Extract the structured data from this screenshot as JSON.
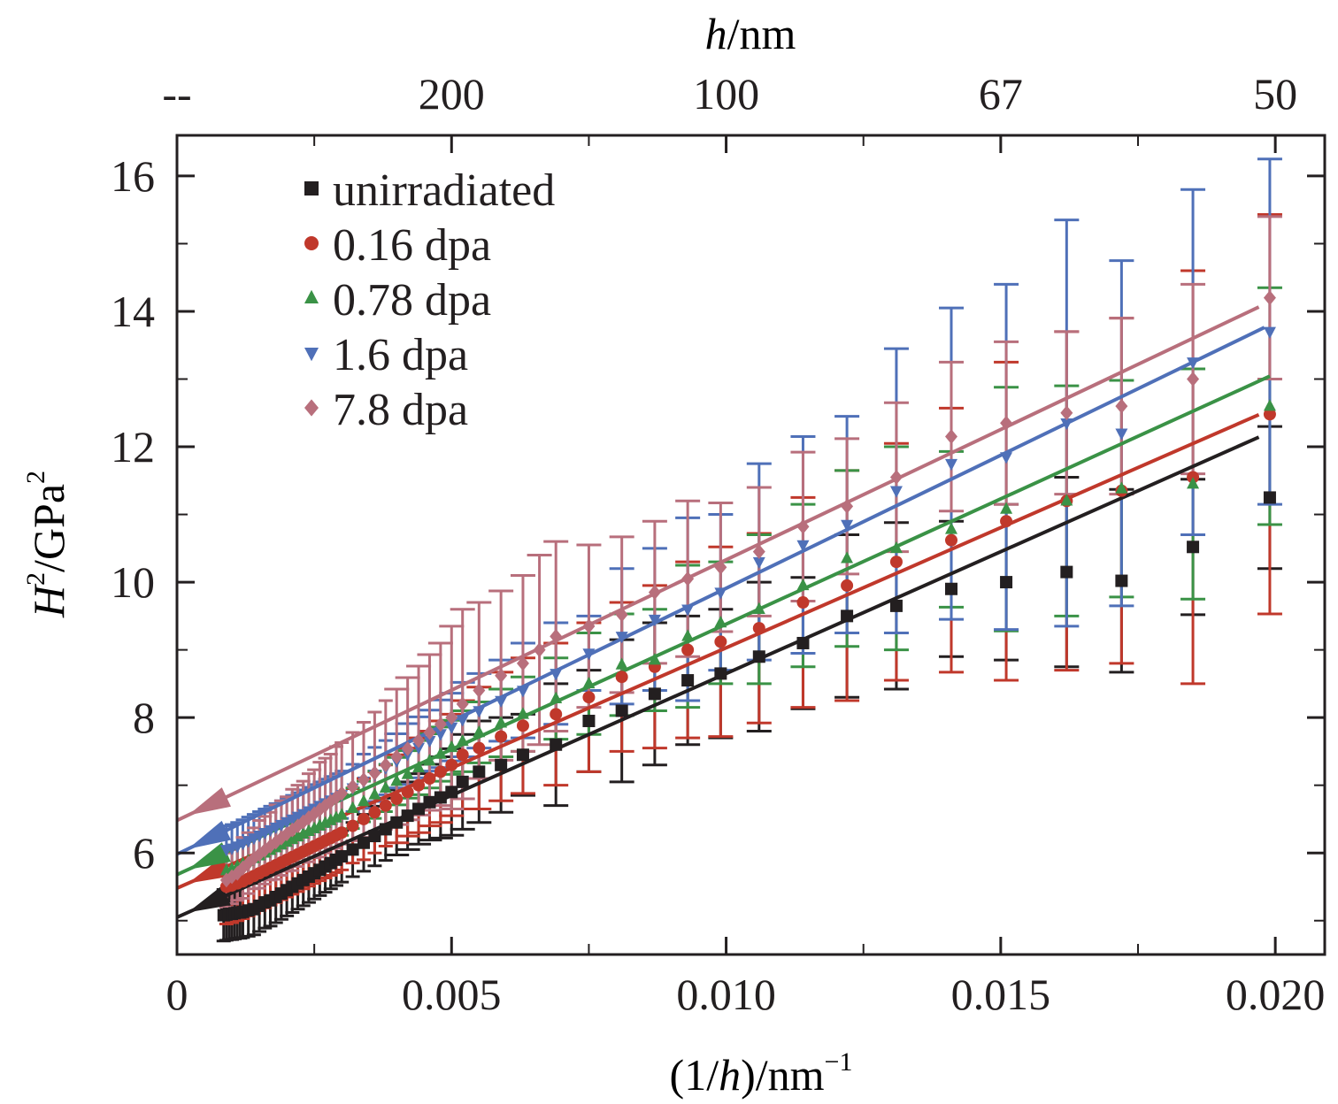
{
  "chart_data": {
    "type": "scatter",
    "xlabel_prefix": "(1/",
    "xlabel_var": "h",
    "xlabel_suffix": ")/nm",
    "xlabel_sup": "−1",
    "ylabel_var": "H",
    "ylabel_sup1": "2",
    "ylabel_mid": "/GPa",
    "ylabel_sup2": "2",
    "top_axis_var": "h",
    "top_axis_unit": "/nm",
    "top_ticks": [
      {
        "x": 0.0,
        "label": "--"
      },
      {
        "x": 0.005,
        "label": "200"
      },
      {
        "x": 0.01,
        "label": "100"
      },
      {
        "x": 0.015,
        "label": "67"
      },
      {
        "x": 0.02,
        "label": "50"
      }
    ],
    "xlim": [
      0,
      0.0209
    ],
    "ylim": [
      4.5,
      16.6
    ],
    "x_ticks": [
      {
        "v": 0,
        "label": "0"
      },
      {
        "v": 0.005,
        "label": "0.005"
      },
      {
        "v": 0.01,
        "label": "0.010"
      },
      {
        "v": 0.015,
        "label": "0.015"
      },
      {
        "v": 0.02,
        "label": "0.020"
      }
    ],
    "y_ticks": [
      {
        "v": 6,
        "label": "6"
      },
      {
        "v": 8,
        "label": "8"
      },
      {
        "v": 10,
        "label": "10"
      },
      {
        "v": 12,
        "label": "12"
      },
      {
        "v": 14,
        "label": "14"
      },
      {
        "v": 16,
        "label": "16"
      }
    ],
    "legend_position": "top-left",
    "series": [
      {
        "name": "unirradiated",
        "color": "#231f20",
        "marker": "square",
        "fit": {
          "intercept": 5.05,
          "slope": 360,
          "x_end": 0.0197
        },
        "x": [
          0.00085,
          0.0009,
          0.00095,
          0.001,
          0.00105,
          0.0011,
          0.00115,
          0.0012,
          0.0013,
          0.0014,
          0.0015,
          0.0016,
          0.0017,
          0.0018,
          0.0019,
          0.002,
          0.0021,
          0.0022,
          0.0023,
          0.0024,
          0.0025,
          0.0026,
          0.0027,
          0.0028,
          0.0029,
          0.003,
          0.0032,
          0.0034,
          0.0036,
          0.0038,
          0.004,
          0.0042,
          0.0044,
          0.0046,
          0.0048,
          0.005,
          0.0052,
          0.0055,
          0.0059,
          0.0063,
          0.0069,
          0.0075,
          0.0081,
          0.0087,
          0.0093,
          0.0099,
          0.0106,
          0.0114,
          0.0122,
          0.0131,
          0.0141,
          0.0151,
          0.0162,
          0.0172,
          0.0185,
          0.0199
        ],
        "y": [
          5.08,
          5.09,
          5.1,
          5.1,
          5.11,
          5.12,
          5.12,
          5.13,
          5.15,
          5.17,
          5.22,
          5.27,
          5.3,
          5.35,
          5.4,
          5.45,
          5.5,
          5.55,
          5.6,
          5.65,
          5.7,
          5.75,
          5.8,
          5.85,
          5.9,
          5.95,
          6.05,
          6.15,
          6.25,
          6.35,
          6.45,
          6.55,
          6.65,
          6.75,
          6.82,
          6.9,
          7.05,
          7.2,
          7.3,
          7.45,
          7.6,
          7.95,
          8.1,
          8.35,
          8.55,
          8.65,
          8.9,
          9.1,
          9.5,
          9.65,
          9.9,
          10.0,
          10.15,
          10.02,
          10.52,
          11.25
        ],
        "err": [
          0.38,
          0.38,
          0.38,
          0.38,
          0.38,
          0.38,
          0.38,
          0.38,
          0.38,
          0.38,
          0.38,
          0.38,
          0.38,
          0.38,
          0.38,
          0.38,
          0.38,
          0.38,
          0.38,
          0.38,
          0.38,
          0.38,
          0.38,
          0.38,
          0.38,
          0.38,
          0.4,
          0.42,
          0.44,
          0.46,
          0.48,
          0.5,
          0.52,
          0.56,
          0.6,
          0.64,
          0.7,
          0.75,
          0.7,
          0.6,
          0.9,
          0.75,
          1.05,
          1.05,
          0.95,
          0.95,
          1.1,
          0.97,
          1.2,
          1.23,
          1.0,
          1.15,
          1.4,
          1.35,
          1.0,
          1.05
        ]
      },
      {
        "name": "0.16 dpa",
        "color": "#c0382b",
        "marker": "circle",
        "fit": {
          "intercept": 5.48,
          "slope": 355,
          "x_end": 0.0197
        },
        "x": [
          0.0009,
          0.001,
          0.0011,
          0.0012,
          0.0013,
          0.0014,
          0.0015,
          0.0016,
          0.0017,
          0.0018,
          0.0019,
          0.002,
          0.0021,
          0.0022,
          0.0023,
          0.0024,
          0.0025,
          0.0026,
          0.0027,
          0.0028,
          0.0029,
          0.003,
          0.0032,
          0.0034,
          0.0036,
          0.0038,
          0.004,
          0.0042,
          0.0044,
          0.0046,
          0.0048,
          0.005,
          0.0052,
          0.0055,
          0.0059,
          0.0063,
          0.0069,
          0.0075,
          0.0081,
          0.0087,
          0.0093,
          0.0099,
          0.0106,
          0.0114,
          0.0122,
          0.0131,
          0.0141,
          0.0151,
          0.0162,
          0.0172,
          0.0185,
          0.0199
        ],
        "y": [
          5.5,
          5.52,
          5.55,
          5.58,
          5.62,
          5.66,
          5.7,
          5.74,
          5.78,
          5.82,
          5.86,
          5.9,
          5.94,
          5.98,
          6.02,
          6.06,
          6.1,
          6.14,
          6.18,
          6.22,
          6.26,
          6.3,
          6.4,
          6.5,
          6.6,
          6.7,
          6.8,
          6.9,
          7.0,
          7.1,
          7.2,
          7.3,
          7.45,
          7.55,
          7.72,
          7.88,
          8.05,
          8.3,
          8.6,
          8.75,
          9.0,
          9.12,
          9.32,
          9.7,
          9.95,
          10.3,
          10.62,
          10.9,
          11.2,
          11.35,
          11.55,
          12.48
        ],
        "err": [
          0.55,
          0.55,
          0.55,
          0.55,
          0.55,
          0.55,
          0.55,
          0.55,
          0.55,
          0.55,
          0.55,
          0.55,
          0.55,
          0.55,
          0.55,
          0.55,
          0.55,
          0.55,
          0.55,
          0.55,
          0.55,
          0.55,
          0.55,
          0.6,
          0.6,
          0.6,
          0.65,
          0.65,
          0.7,
          0.7,
          0.75,
          0.75,
          0.8,
          0.9,
          0.95,
          1.0,
          1.05,
          1.1,
          1.1,
          1.2,
          1.3,
          1.4,
          1.4,
          1.55,
          1.7,
          1.75,
          1.95,
          2.35,
          2.5,
          2.55,
          3.05,
          2.95
        ]
      },
      {
        "name": "0.78 dpa",
        "color": "#3a9246",
        "marker": "triangle-up",
        "fit": {
          "intercept": 5.68,
          "slope": 370,
          "x_end": 0.0199
        },
        "x": [
          0.0009,
          0.001,
          0.0011,
          0.0012,
          0.0013,
          0.0014,
          0.0015,
          0.0016,
          0.0017,
          0.0018,
          0.0019,
          0.002,
          0.0021,
          0.0022,
          0.0023,
          0.0024,
          0.0025,
          0.0026,
          0.0027,
          0.0028,
          0.0029,
          0.003,
          0.0032,
          0.0034,
          0.0036,
          0.0038,
          0.004,
          0.0042,
          0.0044,
          0.0046,
          0.0048,
          0.005,
          0.0052,
          0.0055,
          0.0059,
          0.0063,
          0.0069,
          0.0075,
          0.0081,
          0.0087,
          0.0093,
          0.0099,
          0.0106,
          0.0114,
          0.0122,
          0.0131,
          0.0141,
          0.0151,
          0.0162,
          0.0172,
          0.0185,
          0.0199
        ],
        "y": [
          5.74,
          5.76,
          5.8,
          5.84,
          5.88,
          5.92,
          5.96,
          6.0,
          6.04,
          6.08,
          6.12,
          6.16,
          6.2,
          6.24,
          6.28,
          6.32,
          6.36,
          6.4,
          6.44,
          6.48,
          6.52,
          6.56,
          6.66,
          6.76,
          6.86,
          6.96,
          7.06,
          7.16,
          7.26,
          7.36,
          7.46,
          7.56,
          7.65,
          7.78,
          7.92,
          8.05,
          8.28,
          8.5,
          8.78,
          8.85,
          9.2,
          9.4,
          9.6,
          9.95,
          10.35,
          10.5,
          10.78,
          11.08,
          11.2,
          11.38,
          11.45,
          12.6
        ],
        "err": [
          0.3,
          0.3,
          0.3,
          0.3,
          0.3,
          0.3,
          0.3,
          0.3,
          0.3,
          0.3,
          0.3,
          0.3,
          0.3,
          0.3,
          0.3,
          0.3,
          0.3,
          0.3,
          0.3,
          0.3,
          0.3,
          0.3,
          0.3,
          0.3,
          0.35,
          0.35,
          0.35,
          0.35,
          0.4,
          0.4,
          0.4,
          0.4,
          0.45,
          0.45,
          0.5,
          0.55,
          0.6,
          0.75,
          0.75,
          0.75,
          1.05,
          0.9,
          1.1,
          1.2,
          1.3,
          1.5,
          1.15,
          1.8,
          1.7,
          1.6,
          1.7,
          1.75
        ]
      },
      {
        "name": "1.6 dpa",
        "color": "#4f70b8",
        "marker": "triangle-down",
        "fit": {
          "intercept": 5.98,
          "slope": 393,
          "x_end": 0.0198
        },
        "x": [
          0.0009,
          0.001,
          0.0011,
          0.0012,
          0.0013,
          0.0014,
          0.0015,
          0.0016,
          0.0017,
          0.0018,
          0.0019,
          0.002,
          0.0021,
          0.0022,
          0.0023,
          0.0024,
          0.0025,
          0.0026,
          0.0027,
          0.0028,
          0.0029,
          0.003,
          0.0032,
          0.0034,
          0.0036,
          0.0038,
          0.004,
          0.0042,
          0.0044,
          0.0046,
          0.0048,
          0.005,
          0.0052,
          0.0055,
          0.0059,
          0.0063,
          0.0069,
          0.0075,
          0.0081,
          0.0087,
          0.0093,
          0.0099,
          0.0106,
          0.0114,
          0.0122,
          0.0131,
          0.0141,
          0.0151,
          0.0162,
          0.0172,
          0.0185,
          0.0199
        ],
        "y": [
          6.05,
          6.07,
          6.1,
          6.14,
          6.18,
          6.22,
          6.26,
          6.3,
          6.34,
          6.38,
          6.42,
          6.46,
          6.5,
          6.54,
          6.58,
          6.62,
          6.66,
          6.7,
          6.74,
          6.78,
          6.82,
          6.86,
          6.96,
          7.06,
          7.16,
          7.26,
          7.36,
          7.46,
          7.56,
          7.66,
          7.76,
          7.86,
          7.97,
          8.1,
          8.25,
          8.4,
          8.65,
          8.95,
          9.2,
          9.45,
          9.6,
          9.85,
          10.3,
          10.55,
          10.85,
          11.35,
          11.75,
          11.85,
          12.35,
          12.2,
          13.25,
          13.7
        ],
        "err": [
          0.35,
          0.35,
          0.35,
          0.35,
          0.35,
          0.35,
          0.35,
          0.35,
          0.35,
          0.35,
          0.35,
          0.35,
          0.35,
          0.35,
          0.35,
          0.35,
          0.35,
          0.35,
          0.35,
          0.35,
          0.35,
          0.35,
          0.35,
          0.4,
          0.4,
          0.4,
          0.4,
          0.45,
          0.45,
          0.45,
          0.5,
          0.5,
          0.55,
          0.55,
          0.6,
          0.7,
          0.75,
          0.55,
          1.0,
          1.05,
          1.35,
          1.15,
          1.45,
          1.6,
          1.6,
          2.1,
          2.3,
          2.55,
          3.0,
          2.55,
          2.55,
          2.55
        ]
      },
      {
        "name": "7.8 dpa",
        "color": "#b86f7c",
        "marker": "diamond",
        "fit": {
          "intercept": 6.48,
          "slope": 385,
          "x_end": 0.0197
        },
        "x": [
          0.0009,
          0.001,
          0.0011,
          0.0012,
          0.0013,
          0.0014,
          0.0015,
          0.0016,
          0.0017,
          0.0018,
          0.0019,
          0.002,
          0.0021,
          0.0022,
          0.0023,
          0.0024,
          0.0025,
          0.0026,
          0.0027,
          0.0028,
          0.0029,
          0.003,
          0.0032,
          0.0034,
          0.0036,
          0.0038,
          0.004,
          0.0042,
          0.0044,
          0.0046,
          0.0048,
          0.005,
          0.0052,
          0.0055,
          0.0059,
          0.0063,
          0.0066,
          0.0069,
          0.0075,
          0.0081,
          0.0087,
          0.0093,
          0.0099,
          0.0106,
          0.0114,
          0.0122,
          0.0131,
          0.0141,
          0.0151,
          0.0162,
          0.0172,
          0.0185,
          0.0199
        ],
        "y": [
          5.6,
          5.65,
          5.7,
          5.78,
          5.85,
          5.92,
          5.98,
          6.04,
          6.1,
          6.16,
          6.22,
          6.28,
          6.34,
          6.4,
          6.46,
          6.52,
          6.58,
          6.64,
          6.7,
          6.76,
          6.82,
          6.88,
          6.98,
          7.08,
          7.18,
          7.3,
          7.42,
          7.54,
          7.66,
          7.78,
          7.9,
          8.0,
          8.2,
          8.4,
          8.62,
          8.8,
          9.0,
          9.2,
          9.35,
          9.52,
          9.85,
          10.05,
          10.22,
          10.45,
          10.82,
          11.12,
          11.55,
          12.15,
          12.35,
          12.5,
          12.6,
          13.0,
          14.2
        ],
        "err": [
          0.4,
          0.4,
          0.4,
          0.45,
          0.45,
          0.45,
          0.5,
          0.5,
          0.5,
          0.55,
          0.55,
          0.55,
          0.6,
          0.6,
          0.6,
          0.65,
          0.65,
          0.7,
          0.7,
          0.7,
          0.75,
          0.75,
          0.8,
          0.85,
          0.9,
          0.95,
          1.0,
          1.05,
          1.1,
          1.15,
          1.2,
          1.35,
          1.4,
          1.3,
          1.25,
          1.3,
          1.4,
          1.4,
          1.2,
          1.15,
          1.05,
          1.15,
          0.95,
          0.95,
          1.1,
          1.0,
          1.1,
          1.1,
          1.2,
          1.2,
          1.3,
          1.4,
          1.2
        ]
      }
    ]
  }
}
